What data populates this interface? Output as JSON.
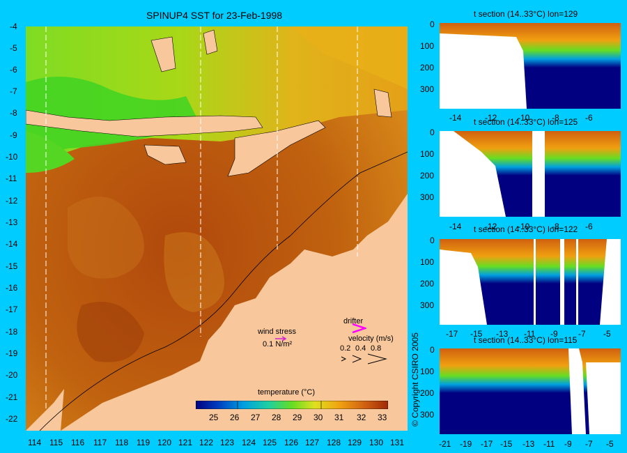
{
  "main_map": {
    "title": "SPINUP4 SST for 23-Feb-1998",
    "lat_ticks": [
      "-4",
      "-5",
      "-6",
      "-7",
      "-8",
      "-9",
      "-10",
      "-11",
      "-12",
      "-13",
      "-14",
      "-15",
      "-16",
      "-17",
      "-18",
      "-19",
      "-20",
      "-21",
      "-22"
    ],
    "lon_ticks": [
      "114",
      "115",
      "116",
      "117",
      "118",
      "119",
      "120",
      "121",
      "122",
      "123",
      "124",
      "125",
      "126",
      "127",
      "128",
      "129",
      "130",
      "131"
    ],
    "wind_label": "wind stress",
    "wind_value": "0.1 N/m²",
    "drifter_label": "drifter",
    "velocity_label": "velocity (m/s)",
    "velocity_values": [
      "0.2",
      "0.4",
      "0.8"
    ],
    "colorbar_title": "temperature (°C)",
    "colorbar_ticks": [
      "25",
      "26",
      "27",
      "28",
      "29",
      "30",
      "31",
      "32",
      "33"
    ],
    "colors": {
      "land": "#f8c79c",
      "warm": "#b24a0c",
      "mid": "#d98a1a",
      "cool": "#66dd22",
      "frame": "#00ccff"
    }
  },
  "sections": [
    {
      "title": "t section (14..33°C) lon=129",
      "x_ticks": [
        "-14",
        "-12",
        "-10",
        "-8",
        "-6"
      ],
      "y_ticks": [
        "0",
        "100",
        "200",
        "300"
      ]
    },
    {
      "title": "t section (14..33°C) lon=125",
      "x_ticks": [
        "-14",
        "-12",
        "-10",
        "-8",
        "-6"
      ],
      "y_ticks": [
        "0",
        "100",
        "200",
        "300"
      ]
    },
    {
      "title": "t section (14..33°C) lon=122",
      "x_ticks": [
        "-17",
        "-15",
        "-13",
        "-11",
        "-9",
        "-7",
        "-5"
      ],
      "y_ticks": [
        "0",
        "100",
        "200",
        "300"
      ]
    },
    {
      "title": "t section (14..33°C) lon=115",
      "x_ticks": [
        "-21",
        "-19",
        "-17",
        "-15",
        "-13",
        "-11",
        "-9",
        "-7",
        "-5"
      ],
      "y_ticks": [
        "0",
        "100",
        "200",
        "300"
      ]
    }
  ],
  "copyright": "© Copyright CSIRO 2005"
}
